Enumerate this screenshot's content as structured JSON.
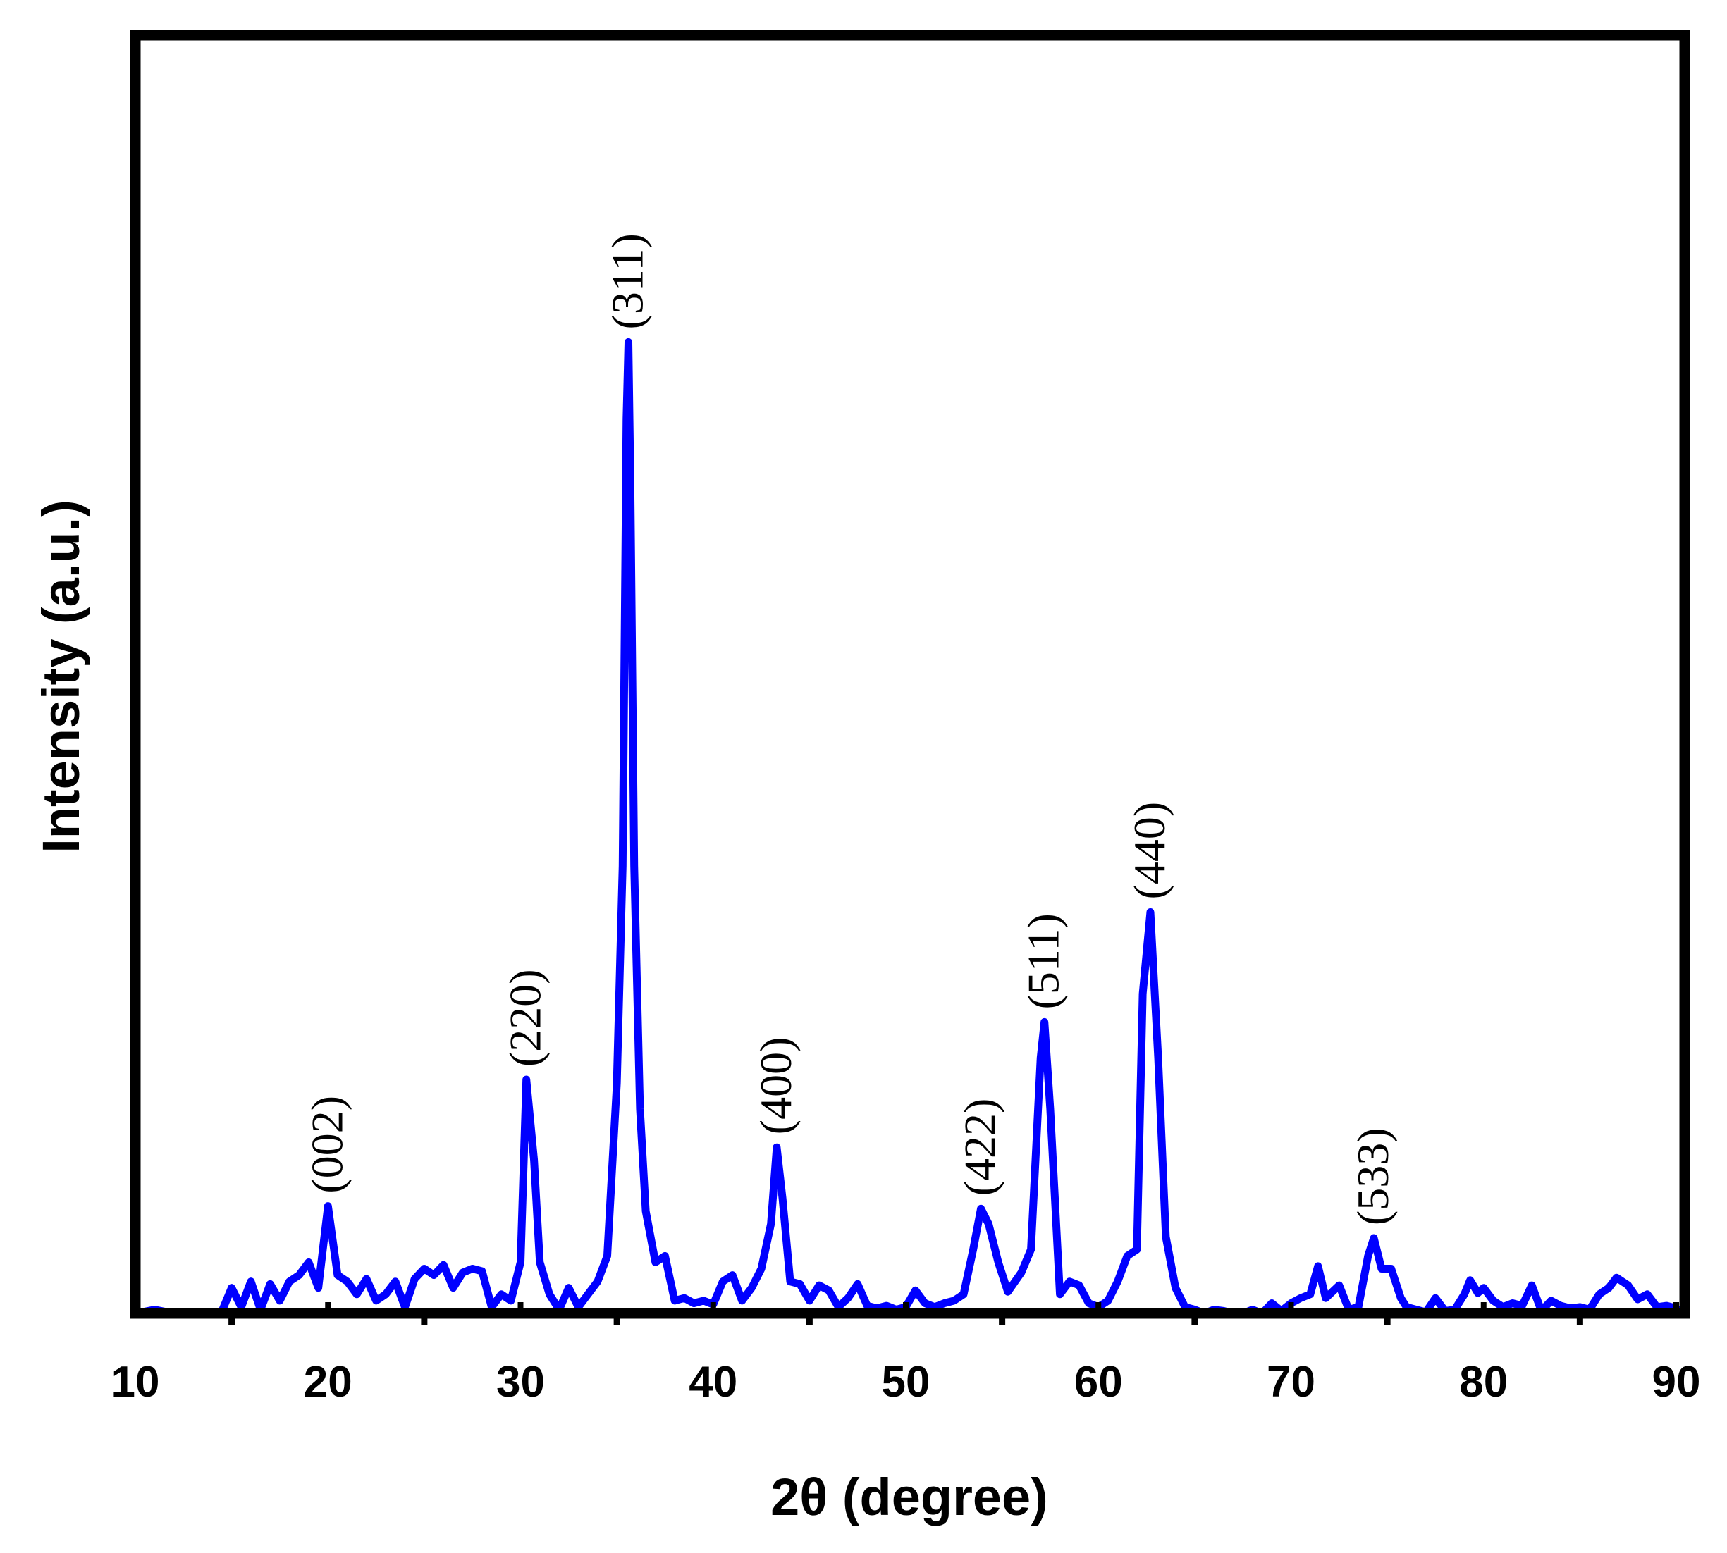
{
  "chart_data": {
    "type": "line",
    "xlabel": "2θ (degree)",
    "ylabel": "Intensity (a.u.)",
    "color": "#0000ff",
    "xlim": [
      10,
      90
    ],
    "xticks": [
      10,
      20,
      30,
      40,
      50,
      60,
      70,
      80,
      90
    ],
    "xminorticks": [
      15,
      25,
      35,
      45,
      55,
      65,
      75,
      85
    ],
    "ylim": [
      0,
      100
    ],
    "x": [
      10,
      11,
      12,
      13,
      14,
      14.5,
      15,
      15.5,
      16,
      16.5,
      17,
      17.5,
      18,
      18.5,
      19,
      19.5,
      20,
      20.5,
      21,
      21.5,
      22,
      22.5,
      23,
      23.5,
      24,
      24.5,
      25,
      25.5,
      26,
      26.5,
      27,
      27.5,
      28,
      28.5,
      29,
      29.5,
      30,
      30.3,
      30.7,
      31,
      31.5,
      32,
      32.5,
      33,
      33.5,
      34,
      34.5,
      35,
      35.3,
      35.5,
      35.6,
      35.7,
      35.9,
      36.2,
      36.5,
      37,
      37.5,
      38,
      38.5,
      39,
      39.5,
      40,
      40.5,
      41,
      41.5,
      42,
      42.5,
      43,
      43.3,
      43.6,
      44,
      44.5,
      45,
      45.5,
      46,
      46.5,
      47,
      47.5,
      48,
      48.5,
      49,
      49.5,
      50,
      50.5,
      51,
      51.5,
      52,
      52.5,
      53,
      53.5,
      53.9,
      54.3,
      54.8,
      55.3,
      56,
      56.5,
      57,
      57.2,
      57.5,
      58,
      58.5,
      59,
      59.5,
      60,
      60.5,
      61,
      61.5,
      62,
      62.3,
      62.7,
      63.1,
      63.5,
      64,
      64.5,
      65,
      65.5,
      66,
      66.5,
      67,
      67.5,
      68,
      68.5,
      69,
      69.5,
      70,
      70.5,
      71,
      71.4,
      71.8,
      72.5,
      73,
      73.5,
      74,
      74.3,
      74.7,
      75.2,
      75.7,
      76,
      76.5,
      77,
      77.5,
      78,
      78.5,
      79,
      79.3,
      79.7,
      80,
      80.5,
      81,
      81.5,
      82,
      82.5,
      83,
      83.5,
      84,
      84.5,
      85,
      85.5,
      86,
      86.5,
      86.9,
      87.5,
      88,
      88.5,
      89,
      89.5,
      90
    ],
    "values": [
      0,
      0.3,
      0,
      0,
      0,
      0.2,
      2,
      0.5,
      2.5,
      0.3,
      2.3,
      1,
      2.5,
      3,
      4,
      2,
      8.4,
      3,
      2.5,
      1.5,
      2.7,
      1,
      1.5,
      2.5,
      0.5,
      2.7,
      3.5,
      3,
      3.8,
      2,
      3.2,
      3.5,
      3.3,
      0.5,
      1.5,
      1,
      4,
      18.3,
      12,
      4,
      1.5,
      0.3,
      2,
      0.5,
      1.5,
      2.5,
      4.5,
      18,
      35,
      70,
      76,
      65,
      35,
      16,
      8,
      4,
      4.5,
      1,
      1.2,
      0.8,
      1,
      0.7,
      2.5,
      3,
      1,
      2,
      3.5,
      7,
      13,
      9,
      2.5,
      2.3,
      1,
      2.2,
      1.8,
      0.5,
      1.2,
      2.3,
      0.6,
      0.4,
      0.6,
      0.3,
      0.5,
      1.8,
      0.8,
      0.5,
      0.8,
      1,
      1.5,
      5,
      8.2,
      7,
      4,
      1.7,
      3.2,
      5,
      20,
      22.8,
      16,
      1.5,
      2.5,
      2.2,
      0.8,
      0.5,
      1,
      2.5,
      4.5,
      5,
      25,
      31.4,
      20,
      6,
      2,
      0.5,
      0.3,
      0,
      0.3,
      0.2,
      0,
      0,
      0.3,
      0,
      0.8,
      0.2,
      0.8,
      1.2,
      1.5,
      3.7,
      1.2,
      2.2,
      0.3,
      0.5,
      4.5,
      5.9,
      3.5,
      3.5,
      1.2,
      0.5,
      0.3,
      0.1,
      1.2,
      0.2,
      0.3,
      1.5,
      2.6,
      1.6,
      2,
      1,
      0.5,
      0.8,
      0.6,
      2.2,
      0.2,
      1,
      0.6,
      0.4,
      0.5,
      0.3,
      1.5,
      2,
      2.8,
      2.2,
      1.1,
      1.5,
      0.5,
      0.6,
      0.4
    ],
    "annotations": [
      {
        "text": "(002)",
        "x": 20
      },
      {
        "text": "(220)",
        "x": 30.3
      },
      {
        "text": "(311)",
        "x": 35.6
      },
      {
        "text": "(400)",
        "x": 43.3
      },
      {
        "text": "(422)",
        "x": 53.9
      },
      {
        "text": "(511)",
        "x": 57.2
      },
      {
        "text": "(440)",
        "x": 62.7
      },
      {
        "text": "(533)",
        "x": 74.3
      }
    ]
  }
}
